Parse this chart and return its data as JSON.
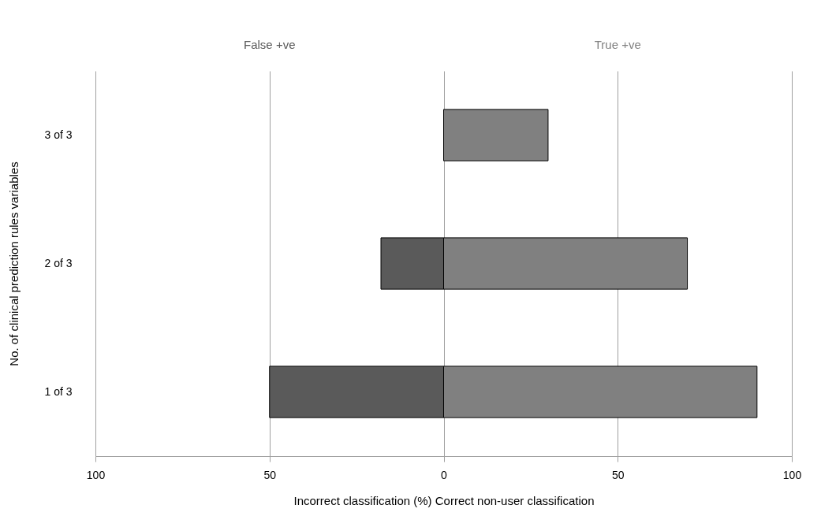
{
  "chart_data": {
    "type": "bar",
    "orientation": "horizontal",
    "xlabel": "Incorrect classification    (%)  Correct non-user classification",
    "ylabel": "No. of clinical prediction rules variables",
    "categories": [
      "3 of 3",
      "2 of 3",
      "1 of 3"
    ],
    "series": [
      {
        "name": "False +ve",
        "color": "#5a5a5a",
        "values": [
          null,
          -18,
          -50
        ]
      },
      {
        "name": "True +ve",
        "color": "#808080",
        "values": [
          30,
          70,
          90
        ]
      }
    ],
    "xlim": [
      -100,
      100
    ],
    "xticks": [
      {
        "value": -100,
        "label": "100"
      },
      {
        "value": -50,
        "label": "50"
      },
      0,
      50,
      100
    ],
    "grid": "x",
    "legend": false,
    "stacked": true
  }
}
